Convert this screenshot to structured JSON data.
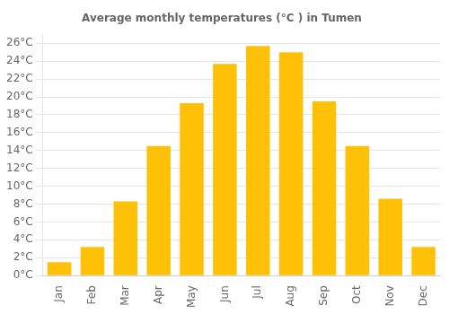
{
  "chart_data": {
    "type": "bar",
    "title": "Average monthly temperatures (°C ) in Tumen",
    "categories": [
      "Jan",
      "Feb",
      "Mar",
      "Apr",
      "May",
      "Jun",
      "Jul",
      "Aug",
      "Sep",
      "Oct",
      "Nov",
      "Dec"
    ],
    "values": [
      1.5,
      3.2,
      8.3,
      14.5,
      19.3,
      23.7,
      25.7,
      25.0,
      19.5,
      14.5,
      8.6,
      3.2
    ],
    "color": "#FFC107",
    "ylim": [
      0,
      27
    ],
    "yticks": [
      {
        "value": 0,
        "label": "0°C"
      },
      {
        "value": 2,
        "label": "2°C"
      },
      {
        "value": 4,
        "label": "4°C"
      },
      {
        "value": 6,
        "label": "6°C"
      },
      {
        "value": 8,
        "label": "8°C"
      },
      {
        "value": 10,
        "label": "10°C"
      },
      {
        "value": 12,
        "label": "12°C"
      },
      {
        "value": 14,
        "label": "14°C"
      },
      {
        "value": 16,
        "label": "16°C"
      },
      {
        "value": 18,
        "label": "18°C"
      },
      {
        "value": 20,
        "label": "20°C"
      },
      {
        "value": 22,
        "label": "22°C"
      },
      {
        "value": 24,
        "label": "24°C"
      },
      {
        "value": 26,
        "label": "26°C"
      }
    ],
    "grid": true
  }
}
